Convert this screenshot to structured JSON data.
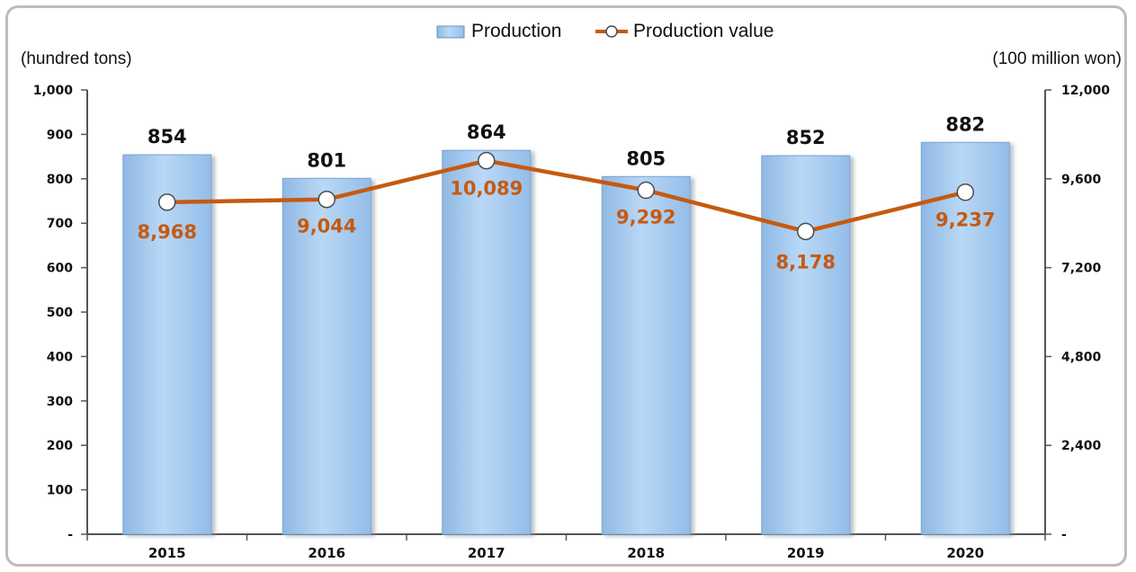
{
  "chart_data": {
    "type": "bar",
    "categories": [
      "2015",
      "2016",
      "2017",
      "2018",
      "2019",
      "2020"
    ],
    "series": [
      {
        "name": "Production",
        "type": "bar",
        "axis": "left",
        "values": [
          854,
          801,
          864,
          805,
          852,
          882
        ],
        "value_labels": [
          "854",
          "801",
          "864",
          "805",
          "852",
          "882"
        ],
        "color": "#a9cdf0"
      },
      {
        "name": "Production value",
        "type": "line",
        "axis": "right",
        "values": [
          8968,
          9044,
          10089,
          9292,
          8178,
          9237
        ],
        "value_labels": [
          "8,968",
          "9,044",
          "10,089",
          "9,292",
          "8,178",
          "9,237"
        ],
        "color": "#c55a11"
      }
    ],
    "y_left": {
      "label": "(hundred tons)",
      "ylim": [
        0,
        1000
      ],
      "ticks": [
        0,
        100,
        200,
        300,
        400,
        500,
        600,
        700,
        800,
        900,
        1000
      ],
      "tick_labels": [
        "-",
        "100",
        "200",
        "300",
        "400",
        "500",
        "600",
        "700",
        "800",
        "900",
        "1,000"
      ]
    },
    "y_right": {
      "label": "(100 million won)",
      "ylim": [
        0,
        12000
      ],
      "ticks": [
        0,
        2400,
        4800,
        7200,
        9600,
        12000
      ],
      "tick_labels": [
        "-",
        "2,400",
        "4,800",
        "7,200",
        "9,600",
        "12,000"
      ]
    },
    "grid": false,
    "legend_position": "top-center"
  }
}
